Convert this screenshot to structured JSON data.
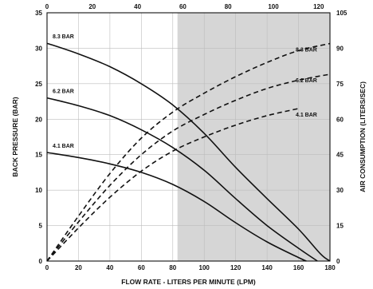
{
  "chart_data": {
    "type": "line",
    "xlabel": "FLOW RATE - LITERS PER MINUTE (LPM)",
    "ylabel_left": "BACK PRESSURE (BAR)",
    "ylabel_right": "AIR CONSUMPTION (LITERS/SEC)",
    "x_bottom": {
      "lim": [
        0,
        180
      ],
      "ticks": [
        0,
        20,
        40,
        60,
        80,
        100,
        120,
        140,
        160,
        180
      ]
    },
    "x_top": {
      "lim": [
        0,
        125
      ],
      "ticks": [
        0,
        20,
        40,
        60,
        80,
        100,
        120
      ]
    },
    "y_left": {
      "lim": [
        0,
        35
      ],
      "ticks": [
        0,
        5,
        10,
        15,
        20,
        25,
        30,
        35
      ]
    },
    "y_right": {
      "lim": [
        0,
        105
      ],
      "ticks": [
        0,
        15,
        30,
        45,
        60,
        75,
        90,
        105
      ]
    },
    "grid": true,
    "shaded_region_x": [
      83,
      180
    ],
    "shade_color": "#d6d6d6",
    "back_pressure_series": [
      {
        "name": "8.3 BAR",
        "x": [
          0,
          20,
          40,
          60,
          80,
          100,
          120,
          140,
          160,
          174,
          180
        ],
        "y": [
          30.7,
          29.2,
          27.4,
          25,
          22,
          18,
          13.2,
          8.8,
          4.5,
          1,
          0
        ]
      },
      {
        "name": "6.2 BAR",
        "x": [
          0,
          20,
          40,
          60,
          80,
          100,
          120,
          140,
          160,
          172
        ],
        "y": [
          23,
          21.9,
          20.5,
          18.5,
          16,
          12.8,
          8.8,
          5,
          1.8,
          0
        ]
      },
      {
        "name": "4.1 BAR",
        "x": [
          0,
          20,
          40,
          60,
          80,
          100,
          120,
          140,
          160,
          165
        ],
        "y": [
          15.3,
          14.6,
          13.7,
          12.5,
          10.8,
          8.4,
          5.4,
          2.7,
          0.5,
          0
        ]
      }
    ],
    "air_consumption_series": [
      {
        "name": "8.3 BAR",
        "x": [
          0,
          20,
          40,
          60,
          80,
          100,
          120,
          140,
          160,
          180
        ],
        "y": [
          0,
          19,
          37,
          52,
          63,
          71,
          78,
          84,
          89,
          92
        ]
      },
      {
        "name": "6.2 BAR",
        "x": [
          0,
          20,
          40,
          60,
          80,
          100,
          120,
          140,
          160,
          180
        ],
        "y": [
          0,
          16.5,
          32,
          45,
          55,
          62,
          68,
          73,
          76.5,
          79
        ]
      },
      {
        "name": "4.1 BAR",
        "x": [
          0,
          20,
          40,
          60,
          80,
          100,
          120,
          140,
          160
        ],
        "y": [
          0,
          14,
          27,
          38,
          46.5,
          52.5,
          57.5,
          61.5,
          64.5
        ]
      }
    ]
  }
}
